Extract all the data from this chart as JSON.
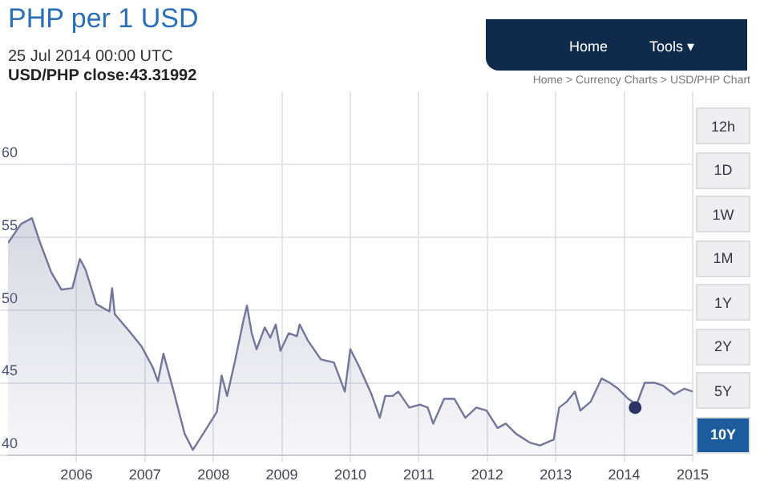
{
  "chart_data": {
    "type": "area",
    "title": "PHP per 1 USD",
    "subtitle": "25 Jul 2014 00:00 UTC",
    "annotations": [
      "USD/PHP close:43.31992",
      "Home > Currency Charts > USD/PHP Chart",
      "Home",
      "Tools ▾",
      "12h",
      "1D",
      "1W",
      "1M",
      "1Y",
      "2Y",
      "5Y",
      "10Y"
    ],
    "xlim": [
      2005,
      2015
    ],
    "xticks": [
      2006,
      2007,
      2008,
      2009,
      2010,
      2011,
      2012,
      2013,
      2014,
      2015
    ],
    "ylim": [
      40,
      65
    ],
    "yticks": [
      40,
      45,
      50,
      55,
      60
    ],
    "grid": true,
    "legend": false,
    "series": [
      {
        "color": "#73769a",
        "x": [
          2005.0,
          2005.19,
          2005.35,
          2005.47,
          2005.63,
          2005.78,
          2005.94,
          2006.05,
          2006.13,
          2006.29,
          2006.48,
          2006.52,
          2006.56,
          2006.76,
          2006.95,
          2007.11,
          2007.19,
          2007.27,
          2007.42,
          2007.58,
          2007.7,
          2007.85,
          2008.05,
          2008.12,
          2008.2,
          2008.32,
          2008.44,
          2008.49,
          2008.56,
          2008.63,
          2008.75,
          2008.83,
          2008.91,
          2008.98,
          2009.1,
          2009.22,
          2009.26,
          2009.38,
          2009.57,
          2009.76,
          2009.92,
          2010.0,
          2010.12,
          2010.31,
          2010.43,
          2010.51,
          2010.62,
          2010.7,
          2010.86,
          2011.02,
          2011.13,
          2011.21,
          2011.37,
          2011.52,
          2011.68,
          2011.84,
          2011.99,
          2012.15,
          2012.27,
          2012.42,
          2012.62,
          2012.77,
          2012.97,
          2013.05,
          2013.16,
          2013.28,
          2013.36,
          2013.51,
          2013.67,
          2013.79,
          2013.91,
          2014.06,
          2014.18,
          2014.3,
          2014.45,
          2014.57,
          2014.73,
          2014.88,
          2015.0
        ],
        "values": [
          54.6,
          55.9,
          56.3,
          54.6,
          52.6,
          51.4,
          51.5,
          53.5,
          52.8,
          50.4,
          49.9,
          51.5,
          49.7,
          48.6,
          47.5,
          46.1,
          45.1,
          47.0,
          44.4,
          41.5,
          40.4,
          41.5,
          43.0,
          45.5,
          44.1,
          46.6,
          49.3,
          50.3,
          48.4,
          47.3,
          48.8,
          48.1,
          49.0,
          47.2,
          48.4,
          48.2,
          49.0,
          47.9,
          46.6,
          46.4,
          44.4,
          47.3,
          46.2,
          44.2,
          42.6,
          44.1,
          44.1,
          44.4,
          43.3,
          43.5,
          43.3,
          42.2,
          43.9,
          43.9,
          42.6,
          43.3,
          43.1,
          41.9,
          42.2,
          41.5,
          40.9,
          40.7,
          41.1,
          43.3,
          43.7,
          44.4,
          43.1,
          43.7,
          45.3,
          45.0,
          44.6,
          43.9,
          43.5,
          45.0,
          45.0,
          44.8,
          44.2,
          44.6,
          44.4
        ]
      },
      {
        "type": "scatter",
        "color": "#2b3566",
        "marker": "circle",
        "x": [
          2014.16
        ],
        "values": [
          43.3
        ]
      }
    ]
  }
}
